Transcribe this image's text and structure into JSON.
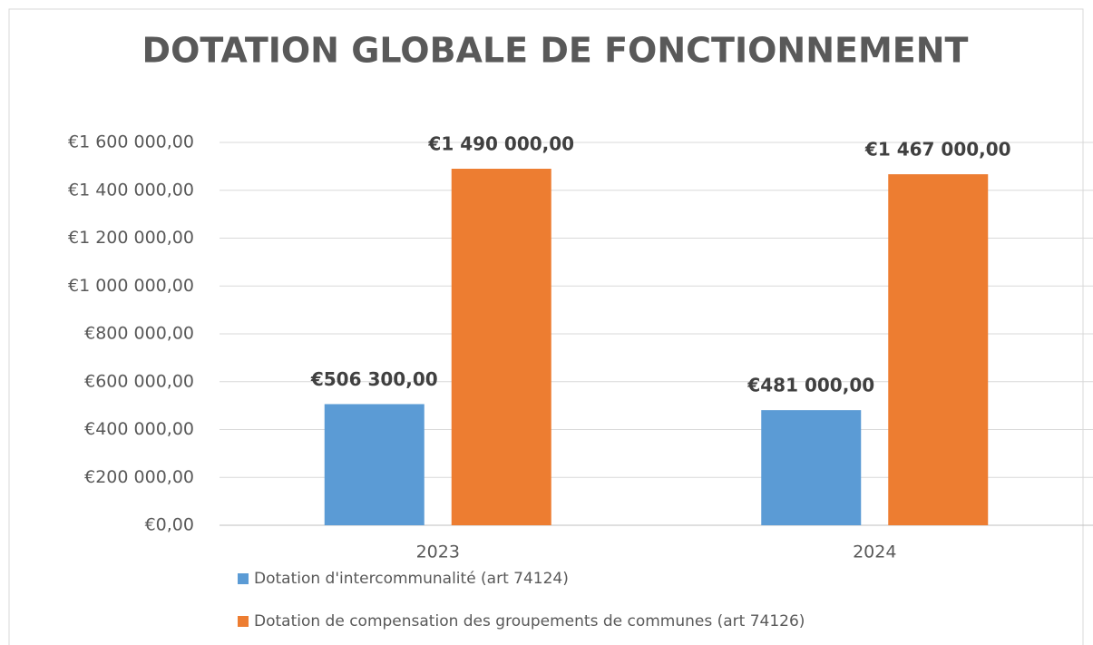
{
  "chart_data": {
    "type": "bar",
    "title": "DOTATION GLOBALE DE FONCTIONNEMENT",
    "categories": [
      "2023",
      "2024"
    ],
    "series": [
      {
        "name": "Dotation d'intercommunalité  (art 74124)",
        "color": "#5b9bd5",
        "values": [
          506300,
          481000
        ],
        "value_labels": [
          "€506 300,00",
          "€481 000,00"
        ]
      },
      {
        "name": "Dotation de compensation des groupements de communes  (art 74126)",
        "color": "#ed7d31",
        "values": [
          1490000,
          1467000
        ],
        "value_labels": [
          "€1 490 000,00",
          "€1 467 000,00"
        ]
      }
    ],
    "ylim": [
      0,
      1600000
    ],
    "yticks": [
      {
        "value": 0,
        "label": "€0,00"
      },
      {
        "value": 200000,
        "label": "€200 000,00"
      },
      {
        "value": 400000,
        "label": "€400 000,00"
      },
      {
        "value": 600000,
        "label": "€600 000,00"
      },
      {
        "value": 800000,
        "label": "€800 000,00"
      },
      {
        "value": 1000000,
        "label": "€1 000 000,00"
      },
      {
        "value": 1200000,
        "label": "€1 200 000,00"
      },
      {
        "value": 1400000,
        "label": "€1 400 000,00"
      },
      {
        "value": 1600000,
        "label": "€1 600 000,00"
      }
    ],
    "grid": true,
    "legend": "bottom"
  }
}
